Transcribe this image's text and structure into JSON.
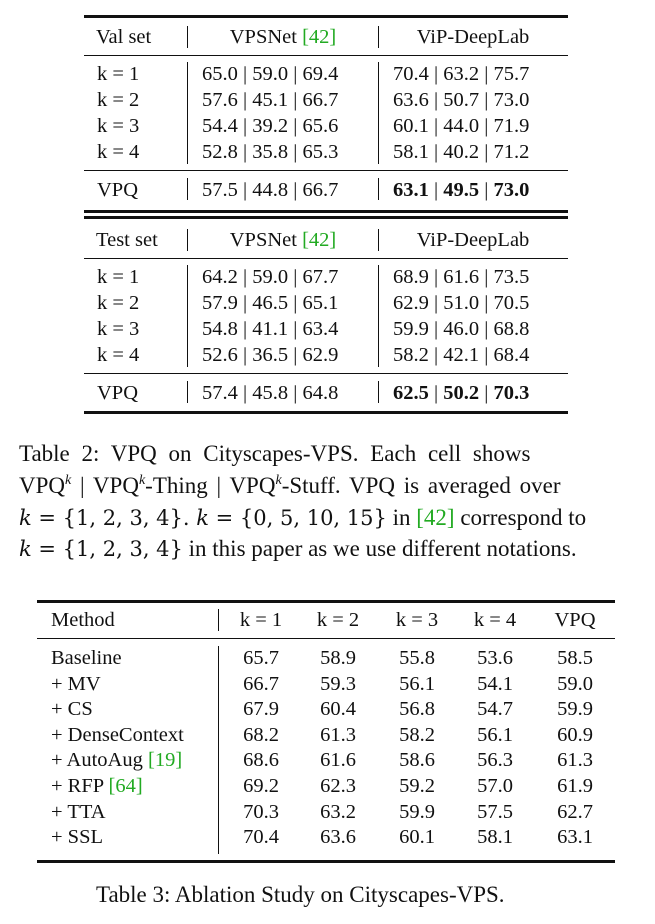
{
  "table2": {
    "val": {
      "header": {
        "set": "Val set",
        "col1": "VPSNet ",
        "col1_cite": "[42]",
        "col2": "ViP-DeepLab"
      },
      "rows": [
        {
          "label": "k = 1",
          "vpsnet": "65.0 | 59.0 | 69.4",
          "vip": "70.4 | 63.2 | 75.7"
        },
        {
          "label": "k = 2",
          "vpsnet": "57.6 | 45.1 | 66.7",
          "vip": "63.6 | 50.7 | 73.0"
        },
        {
          "label": "k = 3",
          "vpsnet": "54.4 | 39.2 | 65.6",
          "vip": "60.1 | 44.0 | 71.9"
        },
        {
          "label": "k = 4",
          "vpsnet": "52.8 | 35.8 | 65.3",
          "vip": "58.1 | 40.2 | 71.2"
        }
      ],
      "vpq": {
        "label": "VPQ",
        "vpsnet": "57.5 | 44.8 | 66.7",
        "vip_a": "63.1",
        "vip_b": "49.5",
        "vip_c": "73.0",
        "sep": " | "
      }
    },
    "test": {
      "header": {
        "set": "Test set",
        "col1": "VPSNet ",
        "col1_cite": "[42]",
        "col2": "ViP-DeepLab"
      },
      "rows": [
        {
          "label": "k = 1",
          "vpsnet": "64.2 | 59.0 | 67.7",
          "vip": "68.9 | 61.6 | 73.5"
        },
        {
          "label": "k = 2",
          "vpsnet": "57.9 | 46.5 | 65.1",
          "vip": "62.9 | 51.0 | 70.5"
        },
        {
          "label": "k = 3",
          "vpsnet": "54.8 | 41.1 | 63.4",
          "vip": "59.9 | 46.0 | 68.8"
        },
        {
          "label": "k = 4",
          "vpsnet": "52.6 | 36.5 | 62.9",
          "vip": "58.2 | 42.1 | 68.4"
        }
      ],
      "vpq": {
        "label": "VPQ",
        "vpsnet": "57.4 | 45.8 | 64.8",
        "vip_a": "62.5",
        "vip_b": "50.2",
        "vip_c": "70.3",
        "sep": " | "
      }
    },
    "caption": {
      "l1_a": "Table 2:  VPQ on Cityscapes-VPS. Each cell shows",
      "l2_a": "VPQ",
      "k": "k",
      "l2_b": " | VPQ",
      "l2_c": "-Thing | VPQ",
      "l2_d": "-Stuff. VPQ is averaged over",
      "l3_a": "k",
      "l3_b": " = {1, 2, 3, 4}.  ",
      "l3_c": "k",
      "l3_d": " = {0, 5, 10, 15}",
      "l3_e": " in ",
      "l3_cite": "[42]",
      "l3_f": " correspond to",
      "l4_a": "k",
      "l4_b": " = {1, 2, 3, 4}",
      "l4_c": " in this paper as we use different notations."
    }
  },
  "table3": {
    "headers": [
      "Method",
      "k = 1",
      "k = 2",
      "k = 3",
      "k = 4",
      "VPQ"
    ],
    "rows": [
      {
        "method": "Baseline",
        "cite": "",
        "v": [
          "65.7",
          "58.9",
          "55.8",
          "53.6",
          "58.5"
        ]
      },
      {
        "method": "+ MV",
        "cite": "",
        "v": [
          "66.7",
          "59.3",
          "56.1",
          "54.1",
          "59.0"
        ]
      },
      {
        "method": "+ CS",
        "cite": "",
        "v": [
          "67.9",
          "60.4",
          "56.8",
          "54.7",
          "59.9"
        ]
      },
      {
        "method": "+ DenseContext",
        "cite": "",
        "v": [
          "68.2",
          "61.3",
          "58.2",
          "56.1",
          "60.9"
        ]
      },
      {
        "method": "+ AutoAug ",
        "cite": "[19]",
        "v": [
          "68.6",
          "61.6",
          "58.6",
          "56.3",
          "61.3"
        ]
      },
      {
        "method": "+ RFP ",
        "cite": "[64]",
        "v": [
          "69.2",
          "62.3",
          "59.2",
          "57.0",
          "61.9"
        ]
      },
      {
        "method": "+ TTA",
        "cite": "",
        "v": [
          "70.3",
          "63.2",
          "59.9",
          "57.5",
          "62.7"
        ]
      },
      {
        "method": "+ SSL",
        "cite": "",
        "v": [
          "70.4",
          "63.6",
          "60.1",
          "58.1",
          "63.1"
        ]
      }
    ],
    "caption": "Table 3: Ablation Study on Cityscapes-VPS."
  },
  "colors": {
    "citation": "#22aa22",
    "text": "#111111"
  }
}
